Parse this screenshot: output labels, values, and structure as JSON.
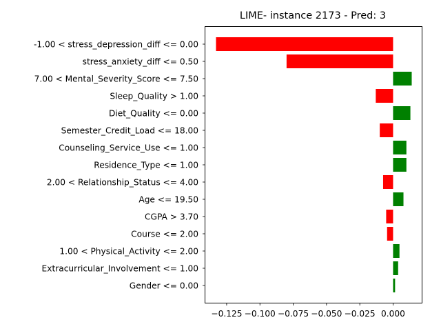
{
  "chart_data": {
    "type": "bar",
    "orientation": "horizontal",
    "title": "LIME- instance 2173 - Pred: 3",
    "xlabel": "",
    "ylabel": "",
    "xlim": [
      -0.141,
      0.0215
    ],
    "xticks": [
      -0.125,
      -0.1,
      -0.075,
      -0.05,
      -0.025,
      0.0
    ],
    "xtick_labels": [
      "−0.125",
      "−0.100",
      "−0.075",
      "−0.050",
      "−0.025",
      "0.000"
    ],
    "positive_color": "#008000",
    "negative_color": "#ff0000",
    "grid": false,
    "categories": [
      "-1.00 < stress_depression_diff <= 0.00",
      "stress_anxiety_diff <= 0.50",
      "7.00 < Mental_Severity_Score <= 7.50",
      "Sleep_Quality > 1.00",
      "Diet_Quality <= 0.00",
      "Semester_Credit_Load <= 18.00",
      "Counseling_Service_Use <= 1.00",
      "Residence_Type <= 1.00",
      "2.00 < Relationship_Status <= 4.00",
      "Age <= 19.50",
      "CGPA > 3.70",
      "Course <= 2.00",
      "1.00 < Physical_Activity <= 2.00",
      "Extracurricular_Involvement <= 1.00",
      "Gender <= 0.00"
    ],
    "values": [
      -0.133,
      -0.08,
      0.014,
      -0.013,
      0.013,
      -0.01,
      0.01,
      0.01,
      -0.0075,
      0.0078,
      -0.0052,
      -0.0045,
      0.0048,
      0.0038,
      0.0015
    ]
  }
}
